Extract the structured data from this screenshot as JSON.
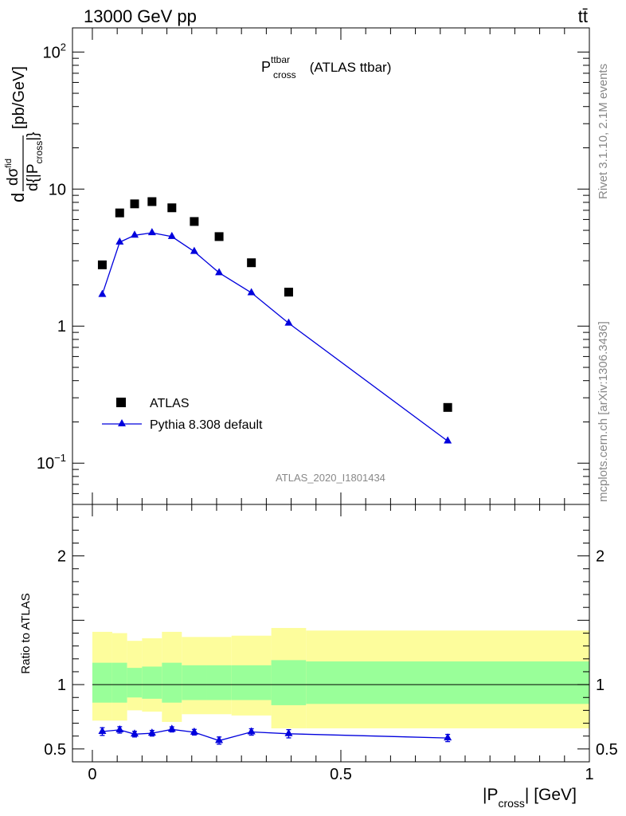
{
  "header": {
    "left": "13000 GeV pp",
    "right": "tt̄",
    "side_top": "Rivet 3.1.10,  2.1M events",
    "side_bottom": "mcplots.cern.ch [arXiv:1306.3436]",
    "watermark": "ATLAS_2020_I1801434"
  },
  "chart_data": [
    {
      "type": "scatter",
      "title_main": "P",
      "title_sup": "ttbar",
      "title_sub": "cross",
      "title_suffix": " (ATLAS ttbar)",
      "ylabel": {
        "prefix": "d",
        "frac_num": "dσ",
        "frac_num_sup": "fid",
        "frac_den": "d{|P",
        "frac_den_sub": "cross",
        "frac_den_close": "|}",
        "units": "[pb/GeV]"
      },
      "y_scale": "log",
      "ylim": [
        0.05,
        150
      ],
      "xlim": [
        -0.04,
        1.0
      ],
      "y_ticks": [
        {
          "value": 0.1,
          "base": "10",
          "exp": "−1"
        },
        {
          "value": 1,
          "base": "1",
          "exp": ""
        },
        {
          "value": 10,
          "base": "10",
          "exp": ""
        },
        {
          "value": 100,
          "base": "10",
          "exp": "2"
        }
      ],
      "legend": {
        "position": "bottom-left",
        "entries": [
          "ATLAS",
          "Pythia 8.308 default"
        ]
      },
      "series": [
        {
          "name": "ATLAS",
          "marker": "square",
          "color": "#000000",
          "x": [
            0.02,
            0.055,
            0.085,
            0.12,
            0.16,
            0.205,
            0.255,
            0.32,
            0.395,
            0.715
          ],
          "values": [
            2.8,
            6.7,
            7.8,
            8.1,
            7.3,
            5.8,
            4.5,
            2.9,
            1.77,
            0.255
          ]
        },
        {
          "name": "Pythia 8.308 default",
          "marker": "triangle",
          "color": "#0000dd",
          "x": [
            0.02,
            0.055,
            0.085,
            0.12,
            0.16,
            0.205,
            0.255,
            0.32,
            0.395,
            0.715
          ],
          "values": [
            1.7,
            4.1,
            4.6,
            4.8,
            4.5,
            3.5,
            2.45,
            1.75,
            1.05,
            0.145
          ]
        }
      ]
    },
    {
      "type": "scatter",
      "ylabel": "Ratio to ATLAS",
      "xlabel_main": "|P",
      "xlabel_sub": "cross",
      "xlabel_suffix": "| [GeV]",
      "xlim": [
        -0.04,
        1.0
      ],
      "ylim": [
        0.4,
        2.4
      ],
      "x_ticks": [
        {
          "value": 0,
          "label": "0"
        },
        {
          "value": 0.5,
          "label": "0.5"
        },
        {
          "value": 1,
          "label": "1"
        }
      ],
      "y_ticks": [
        {
          "value": 0.5,
          "label": "0.5"
        },
        {
          "value": 1,
          "label": "1"
        },
        {
          "value": 2,
          "label": "2"
        }
      ],
      "reference_line": 1,
      "band_colors": {
        "outer": "#fdfd9c",
        "inner": "#99ff99"
      },
      "bins": [
        {
          "lo": 0.0,
          "hi": 0.04,
          "outer": [
            0.72,
            1.41
          ],
          "inner": [
            0.86,
            1.17
          ]
        },
        {
          "lo": 0.04,
          "hi": 0.07,
          "outer": [
            0.72,
            1.4
          ],
          "inner": [
            0.86,
            1.17
          ]
        },
        {
          "lo": 0.07,
          "hi": 0.1,
          "outer": [
            0.8,
            1.34
          ],
          "inner": [
            0.9,
            1.13
          ]
        },
        {
          "lo": 0.1,
          "hi": 0.14,
          "outer": [
            0.79,
            1.36
          ],
          "inner": [
            0.89,
            1.14
          ]
        },
        {
          "lo": 0.14,
          "hi": 0.18,
          "outer": [
            0.71,
            1.41
          ],
          "inner": [
            0.86,
            1.17
          ]
        },
        {
          "lo": 0.18,
          "hi": 0.23,
          "outer": [
            0.77,
            1.37
          ],
          "inner": [
            0.88,
            1.15
          ]
        },
        {
          "lo": 0.23,
          "hi": 0.28,
          "outer": [
            0.77,
            1.37
          ],
          "inner": [
            0.88,
            1.15
          ]
        },
        {
          "lo": 0.28,
          "hi": 0.36,
          "outer": [
            0.76,
            1.38
          ],
          "inner": [
            0.88,
            1.15
          ]
        },
        {
          "lo": 0.36,
          "hi": 0.43,
          "outer": [
            0.66,
            1.44
          ],
          "inner": [
            0.84,
            1.19
          ]
        },
        {
          "lo": 0.43,
          "hi": 1.0,
          "outer": [
            0.66,
            1.42
          ],
          "inner": [
            0.85,
            1.18
          ]
        }
      ],
      "series": [
        {
          "name": "Pythia 8.308 default",
          "color": "#0000dd",
          "x": [
            0.02,
            0.055,
            0.085,
            0.12,
            0.16,
            0.205,
            0.255,
            0.32,
            0.395,
            0.715
          ],
          "values": [
            0.635,
            0.648,
            0.615,
            0.622,
            0.652,
            0.63,
            0.565,
            0.632,
            0.618,
            0.585
          ],
          "errors": [
            0.03,
            0.025,
            0.022,
            0.022,
            0.02,
            0.022,
            0.028,
            0.025,
            0.032,
            0.028
          ]
        }
      ]
    }
  ]
}
